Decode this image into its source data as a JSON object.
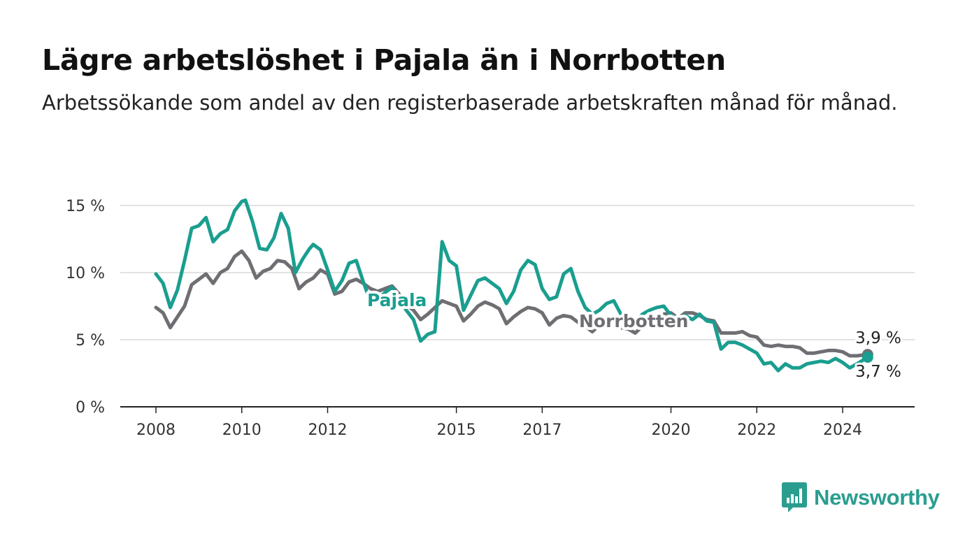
{
  "title": "Lägre arbetslöshet i Pajala än i Norrbotten",
  "subtitle": "Arbetssökande som andel av den registerbaserade arbetskraften månad för månad.",
  "brand": {
    "name": "Newsworthy",
    "icon": "bar-chart-speech-bubble-icon",
    "color": "#2a9d8f"
  },
  "chart_data": {
    "type": "line",
    "title": "Lägre arbetslöshet i Pajala än i Norrbotten",
    "subtitle": "Arbetssökande som andel av den registerbaserade arbetskraften månad för månad.",
    "xlabel": "",
    "ylabel": "",
    "x_ticks": [
      "2008",
      "2010",
      "2012",
      "2015",
      "2017",
      "2020",
      "2022",
      "2024"
    ],
    "y_ticks": [
      "0 %",
      "5 %",
      "10 %",
      "15 %"
    ],
    "ylim": [
      0,
      15
    ],
    "xlim": [
      "2008-01",
      "2024-08"
    ],
    "grid": true,
    "legend": "inline-labels",
    "series": [
      {
        "name": "Pajala",
        "color": "#1a9e8f",
        "end_label": "3,7 %",
        "points": [
          [
            "2008-01",
            9.9
          ],
          [
            "2008-03",
            9.2
          ],
          [
            "2008-05",
            7.4
          ],
          [
            "2008-07",
            8.7
          ],
          [
            "2008-09",
            10.9
          ],
          [
            "2008-11",
            13.3
          ],
          [
            "2009-01",
            13.5
          ],
          [
            "2009-03",
            14.1
          ],
          [
            "2009-05",
            12.3
          ],
          [
            "2009-07",
            12.9
          ],
          [
            "2009-09",
            13.2
          ],
          [
            "2009-11",
            14.6
          ],
          [
            "2010-01",
            15.3
          ],
          [
            "2010-02",
            15.4
          ],
          [
            "2010-04",
            13.8
          ],
          [
            "2010-06",
            11.8
          ],
          [
            "2010-08",
            11.7
          ],
          [
            "2010-10",
            12.6
          ],
          [
            "2010-12",
            14.4
          ],
          [
            "2011-02",
            13.3
          ],
          [
            "2011-04",
            10.0
          ],
          [
            "2011-06",
            11.0
          ],
          [
            "2011-08",
            11.8
          ],
          [
            "2011-09",
            12.1
          ],
          [
            "2011-11",
            11.7
          ],
          [
            "2012-01",
            10.2
          ],
          [
            "2012-03",
            8.6
          ],
          [
            "2012-05",
            9.4
          ],
          [
            "2012-07",
            10.7
          ],
          [
            "2012-09",
            10.9
          ],
          [
            "2012-11",
            9.3
          ],
          [
            "2013-01",
            7.8
          ],
          [
            "2013-03",
            8.0
          ],
          [
            "2013-05",
            8.5
          ],
          [
            "2013-07",
            8.9
          ],
          [
            "2013-09",
            8.1
          ],
          [
            "2013-11",
            7.2
          ],
          [
            "2014-01",
            6.5
          ],
          [
            "2014-03",
            4.9
          ],
          [
            "2014-05",
            5.4
          ],
          [
            "2014-07",
            5.6
          ],
          [
            "2014-09",
            12.3
          ],
          [
            "2014-11",
            10.9
          ],
          [
            "2015-01",
            10.5
          ],
          [
            "2015-03",
            7.2
          ],
          [
            "2015-05",
            8.3
          ],
          [
            "2015-07",
            9.4
          ],
          [
            "2015-09",
            9.6
          ],
          [
            "2015-11",
            9.2
          ],
          [
            "2016-01",
            8.8
          ],
          [
            "2016-03",
            7.7
          ],
          [
            "2016-05",
            8.6
          ],
          [
            "2016-07",
            10.2
          ],
          [
            "2016-09",
            10.9
          ],
          [
            "2016-11",
            10.6
          ],
          [
            "2017-01",
            8.8
          ],
          [
            "2017-03",
            8.0
          ],
          [
            "2017-05",
            8.2
          ],
          [
            "2017-07",
            9.9
          ],
          [
            "2017-09",
            10.3
          ],
          [
            "2017-11",
            8.6
          ],
          [
            "2018-01",
            7.4
          ],
          [
            "2018-03",
            6.9
          ],
          [
            "2018-05",
            7.2
          ],
          [
            "2018-07",
            7.7
          ],
          [
            "2018-09",
            7.9
          ],
          [
            "2018-11",
            6.9
          ],
          [
            "2019-01",
            6.5
          ],
          [
            "2019-03",
            6.3
          ],
          [
            "2019-05",
            6.9
          ],
          [
            "2019-07",
            7.2
          ],
          [
            "2019-09",
            7.4
          ],
          [
            "2019-11",
            7.5
          ],
          [
            "2020-01",
            6.8
          ],
          [
            "2020-03",
            6.6
          ],
          [
            "2020-05",
            6.8
          ],
          [
            "2020-07",
            6.5
          ],
          [
            "2020-09",
            6.9
          ],
          [
            "2020-11",
            6.4
          ],
          [
            "2021-01",
            6.3
          ],
          [
            "2021-03",
            4.3
          ],
          [
            "2021-05",
            4.8
          ],
          [
            "2021-07",
            4.8
          ],
          [
            "2021-09",
            4.6
          ],
          [
            "2021-11",
            4.3
          ],
          [
            "2022-01",
            4.0
          ],
          [
            "2022-03",
            3.2
          ],
          [
            "2022-05",
            3.3
          ],
          [
            "2022-07",
            2.7
          ],
          [
            "2022-09",
            3.2
          ],
          [
            "2022-11",
            2.9
          ],
          [
            "2023-01",
            2.9
          ],
          [
            "2023-03",
            3.2
          ],
          [
            "2023-05",
            3.3
          ],
          [
            "2023-07",
            3.4
          ],
          [
            "2023-09",
            3.3
          ],
          [
            "2023-11",
            3.6
          ],
          [
            "2024-01",
            3.3
          ],
          [
            "2024-03",
            2.9
          ],
          [
            "2024-05",
            3.2
          ],
          [
            "2024-08",
            3.7
          ]
        ]
      },
      {
        "name": "Norrbotten",
        "color": "#6e6e73",
        "end_label": "3,9 %",
        "points": [
          [
            "2008-01",
            7.4
          ],
          [
            "2008-03",
            7.0
          ],
          [
            "2008-05",
            5.9
          ],
          [
            "2008-07",
            6.7
          ],
          [
            "2008-09",
            7.5
          ],
          [
            "2008-11",
            9.1
          ],
          [
            "2009-01",
            9.5
          ],
          [
            "2009-03",
            9.9
          ],
          [
            "2009-05",
            9.2
          ],
          [
            "2009-07",
            10.0
          ],
          [
            "2009-09",
            10.3
          ],
          [
            "2009-11",
            11.2
          ],
          [
            "2010-01",
            11.6
          ],
          [
            "2010-03",
            10.9
          ],
          [
            "2010-05",
            9.6
          ],
          [
            "2010-07",
            10.1
          ],
          [
            "2010-09",
            10.3
          ],
          [
            "2010-11",
            10.9
          ],
          [
            "2011-01",
            10.8
          ],
          [
            "2011-03",
            10.3
          ],
          [
            "2011-05",
            8.8
          ],
          [
            "2011-07",
            9.3
          ],
          [
            "2011-09",
            9.6
          ],
          [
            "2011-11",
            10.2
          ],
          [
            "2012-01",
            9.9
          ],
          [
            "2012-03",
            8.4
          ],
          [
            "2012-05",
            8.6
          ],
          [
            "2012-07",
            9.3
          ],
          [
            "2012-09",
            9.5
          ],
          [
            "2012-11",
            9.2
          ],
          [
            "2013-01",
            8.8
          ],
          [
            "2013-03",
            8.6
          ],
          [
            "2013-05",
            8.8
          ],
          [
            "2013-07",
            9.0
          ],
          [
            "2013-09",
            8.4
          ],
          [
            "2013-11",
            7.6
          ],
          [
            "2014-01",
            7.2
          ],
          [
            "2014-03",
            6.5
          ],
          [
            "2014-05",
            6.9
          ],
          [
            "2014-07",
            7.4
          ],
          [
            "2014-09",
            7.9
          ],
          [
            "2014-11",
            7.7
          ],
          [
            "2015-01",
            7.5
          ],
          [
            "2015-03",
            6.4
          ],
          [
            "2015-05",
            6.9
          ],
          [
            "2015-07",
            7.5
          ],
          [
            "2015-09",
            7.8
          ],
          [
            "2015-11",
            7.6
          ],
          [
            "2016-01",
            7.3
          ],
          [
            "2016-03",
            6.2
          ],
          [
            "2016-05",
            6.7
          ],
          [
            "2016-07",
            7.1
          ],
          [
            "2016-09",
            7.4
          ],
          [
            "2016-11",
            7.3
          ],
          [
            "2017-01",
            7.0
          ],
          [
            "2017-03",
            6.1
          ],
          [
            "2017-05",
            6.6
          ],
          [
            "2017-07",
            6.8
          ],
          [
            "2017-09",
            6.7
          ],
          [
            "2017-11",
            6.3
          ],
          [
            "2018-01",
            6.0
          ],
          [
            "2018-03",
            5.6
          ],
          [
            "2018-05",
            6.1
          ],
          [
            "2018-07",
            6.4
          ],
          [
            "2018-09",
            6.2
          ],
          [
            "2018-11",
            5.9
          ],
          [
            "2019-01",
            5.8
          ],
          [
            "2019-03",
            5.5
          ],
          [
            "2019-05",
            6.0
          ],
          [
            "2019-07",
            6.5
          ],
          [
            "2019-09",
            6.6
          ],
          [
            "2019-11",
            6.9
          ],
          [
            "2020-01",
            7.0
          ],
          [
            "2020-03",
            6.6
          ],
          [
            "2020-05",
            7.0
          ],
          [
            "2020-07",
            7.0
          ],
          [
            "2020-09",
            6.8
          ],
          [
            "2020-11",
            6.5
          ],
          [
            "2021-01",
            6.4
          ],
          [
            "2021-03",
            5.5
          ],
          [
            "2021-05",
            5.5
          ],
          [
            "2021-07",
            5.5
          ],
          [
            "2021-09",
            5.6
          ],
          [
            "2021-11",
            5.3
          ],
          [
            "2022-01",
            5.2
          ],
          [
            "2022-03",
            4.6
          ],
          [
            "2022-05",
            4.5
          ],
          [
            "2022-07",
            4.6
          ],
          [
            "2022-09",
            4.5
          ],
          [
            "2022-11",
            4.5
          ],
          [
            "2023-01",
            4.4
          ],
          [
            "2023-03",
            4.0
          ],
          [
            "2023-05",
            4.0
          ],
          [
            "2023-07",
            4.1
          ],
          [
            "2023-09",
            4.2
          ],
          [
            "2023-11",
            4.2
          ],
          [
            "2024-01",
            4.1
          ],
          [
            "2024-03",
            3.8
          ],
          [
            "2024-05",
            3.8
          ],
          [
            "2024-08",
            3.9
          ]
        ]
      }
    ]
  }
}
